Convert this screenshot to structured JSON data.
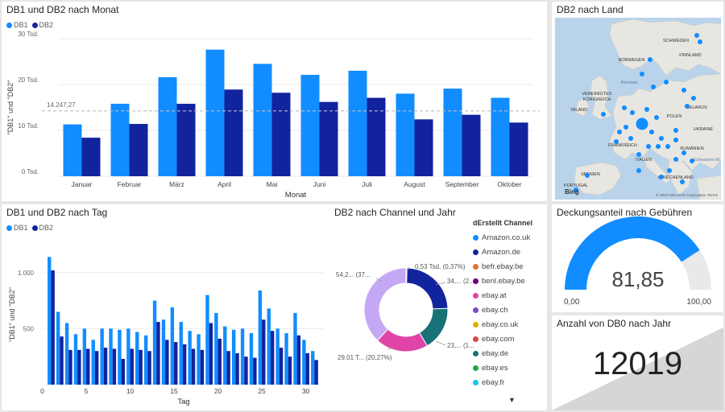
{
  "tiles": {
    "monat": {
      "title": "DB1 und DB2 nach Monat",
      "legend": [
        {
          "label": "DB1",
          "color": "#118DFF"
        },
        {
          "label": "DB2",
          "color": "#12239E"
        }
      ],
      "ylabel": "\"DB1\" und \"DB2\"",
      "xlabel": "Monat",
      "ref_label": "14.247,27",
      "y_ticks": [
        "0 Tsd.",
        "10 Tsd.",
        "20 Tsd.",
        "30 Tsd."
      ]
    },
    "tag": {
      "title": "DB1 und DB2 nach Tag",
      "legend": [
        {
          "label": "DB1",
          "color": "#118DFF"
        },
        {
          "label": "DB2",
          "color": "#12239E"
        }
      ],
      "ylabel": "\"DB1\" und \"DB2\"",
      "xlabel": "Tag",
      "y_ticks": [
        "500",
        "1.000"
      ],
      "x_ticks": [
        "0",
        "5",
        "10",
        "15",
        "20",
        "25",
        "30"
      ]
    },
    "land": {
      "title": "DB2 nach Land",
      "map_labels": [
        "SCHWEDEN",
        "FINNLAND",
        "NORWEGEN",
        "Nordsee",
        "VEREINIGTES KÖNIGREICH",
        "IRLAND",
        "POLEN",
        "BELARUS",
        "UKRAINE",
        "FRANKREICH",
        "RUMÄNIEN",
        "ITALIEN",
        "SPANIEN",
        "PORTUGAL",
        "GRIECHENLAND",
        "Schwarzes M."
      ],
      "bing_label": "Bing",
      "copyright": "© 2020 Microsoft Corporation  Terms"
    },
    "channel": {
      "title": "DB2 nach Channel und Jahr",
      "legend_header": "dErstellt Channel",
      "channels": [
        {
          "label": "Amazon.co.uk",
          "color": "#118DFF"
        },
        {
          "label": "Amazon.de",
          "color": "#12239E"
        },
        {
          "label": "befr.ebay.be",
          "color": "#E66C37"
        },
        {
          "label": "benl.ebay.be",
          "color": "#6B007B"
        },
        {
          "label": "ebay.at",
          "color": "#E044A7"
        },
        {
          "label": "ebay.ch",
          "color": "#744EC2"
        },
        {
          "label": "ebay.co.uk",
          "color": "#D9B300"
        },
        {
          "label": "ebay.com",
          "color": "#D64550"
        },
        {
          "label": "ebay.de",
          "color": "#197278"
        },
        {
          "label": "ebay.es",
          "color": "#1AAB40"
        },
        {
          "label": "ebay.fr",
          "color": "#15C6F4"
        }
      ],
      "donut_labels": [
        "0,53 Tsd. (0,37%)",
        "34,... (2...",
        "23,... (1...",
        "29,01 T... (20,27%)",
        "54,2... (37..."
      ],
      "scroll_icon": "triangle-down-icon"
    },
    "gauge": {
      "title": "Deckungsanteil nach Gebühren",
      "value": "81,85",
      "min": "0,00",
      "max": "100,00"
    },
    "kpi": {
      "title": "Anzahl von DB0 nach Jahr",
      "value": "12019"
    }
  },
  "chart_data": [
    {
      "type": "bar",
      "title": "DB1 und DB2 nach Monat",
      "xlabel": "Monat",
      "ylabel": "\"DB1\" und \"DB2\"",
      "ylim": [
        0,
        30000
      ],
      "categories": [
        "Januar",
        "Februar",
        "März",
        "April",
        "Mai",
        "Juni",
        "Juli",
        "August",
        "September",
        "Oktober"
      ],
      "series": [
        {
          "name": "DB1",
          "values": [
            11300,
            15800,
            21600,
            27600,
            24500,
            22100,
            23000,
            18000,
            19100,
            17100
          ]
        },
        {
          "name": "DB2",
          "values": [
            8400,
            11400,
            15800,
            18900,
            18200,
            16200,
            17100,
            12400,
            13400,
            11700
          ]
        }
      ],
      "reference_line": 14247.27,
      "legend": "top-left"
    },
    {
      "type": "bar",
      "title": "DB1 und DB2 nach Tag",
      "xlabel": "Tag",
      "ylabel": "\"DB1\" und \"DB2\"",
      "ylim": [
        0,
        1250
      ],
      "categories": [
        1,
        2,
        3,
        4,
        5,
        6,
        7,
        8,
        9,
        10,
        11,
        12,
        13,
        14,
        15,
        16,
        17,
        18,
        19,
        20,
        21,
        22,
        23,
        24,
        25,
        26,
        27,
        28,
        29,
        30,
        31
      ],
      "series": [
        {
          "name": "DB1",
          "values": [
            1140,
            650,
            550,
            450,
            500,
            400,
            500,
            500,
            490,
            500,
            470,
            440,
            750,
            580,
            690,
            560,
            480,
            450,
            800,
            640,
            520,
            490,
            500,
            460,
            840,
            680,
            500,
            460,
            640,
            400,
            300
          ]
        },
        {
          "name": "DB2",
          "values": [
            1020,
            430,
            310,
            310,
            320,
            300,
            330,
            320,
            230,
            320,
            310,
            300,
            560,
            400,
            380,
            360,
            320,
            310,
            550,
            410,
            300,
            280,
            250,
            240,
            580,
            480,
            330,
            250,
            440,
            280,
            220
          ]
        }
      ],
      "legend": "top-left"
    },
    {
      "type": "pie",
      "title": "DB2 nach Channel und Jahr",
      "categories": [
        "Amazon.co.uk",
        "Amazon.de",
        "ebay.de",
        "ebay.at",
        "ebay.ch"
      ],
      "values": [
        0.37,
        24.0,
        17.0,
        20.27,
        37.9
      ],
      "hole": true
    },
    {
      "type": "gauge",
      "title": "Deckungsanteil nach Gebühren",
      "value": 81.85,
      "min": 0,
      "max": 100
    }
  ]
}
